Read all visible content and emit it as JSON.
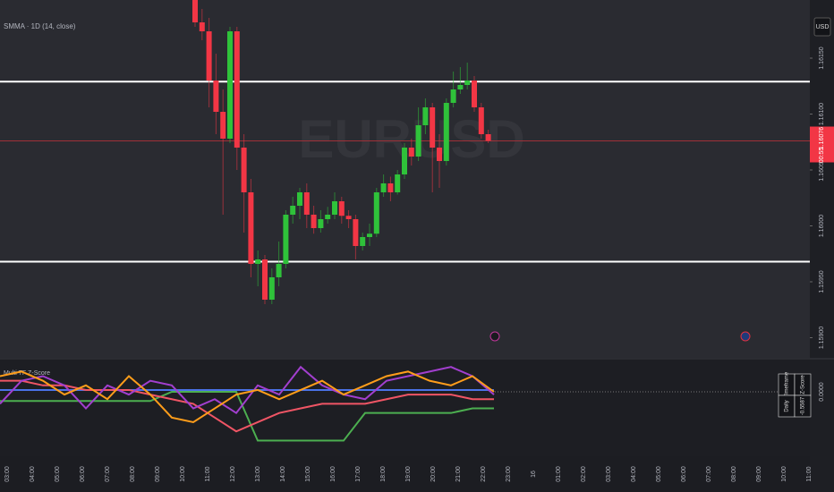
{
  "chart_data": [
    {
      "type": "candlestick",
      "legend": "SMMA · 1D (14, close)",
      "watermark": "EURUSD",
      "currency": "USD",
      "countdown": "00:55",
      "up_color": "#2fc23a",
      "down_color": "#f23645",
      "open": [
        1.16202,
        1.16182,
        1.16174,
        1.1613,
        1.16102,
        1.16078,
        1.16174,
        1.1607,
        1.1603,
        1.15966,
        1.1597,
        1.15934,
        1.15954,
        1.15966,
        1.1601,
        1.16018,
        1.1603,
        1.1601,
        1.15998,
        1.16006,
        1.1601,
        1.16022,
        1.16009,
        1.16006,
        1.15982,
        1.1599,
        1.15993,
        1.1603,
        1.16038,
        1.1603,
        1.16046,
        1.1607,
        1.16062,
        1.1609,
        1.16106,
        1.1607,
        1.16058,
        1.1611,
        1.16122,
        1.16126,
        1.1613,
        1.16106,
        1.16082
      ],
      "high": [
        1.16202,
        1.16194,
        1.16186,
        1.16154,
        1.16122,
        1.16178,
        1.16178,
        1.16082,
        1.16042,
        1.15978,
        1.15974,
        1.15962,
        1.15986,
        1.16014,
        1.16026,
        1.16034,
        1.16038,
        1.16018,
        1.16014,
        1.16017,
        1.1603,
        1.16026,
        1.16014,
        1.1601,
        1.15994,
        1.16002,
        1.16034,
        1.16046,
        1.16044,
        1.1605,
        1.16074,
        1.16078,
        1.16106,
        1.16114,
        1.1611,
        1.16082,
        1.16114,
        1.16138,
        1.16142,
        1.16146,
        1.16134,
        1.1611,
        1.16086
      ],
      "low": [
        1.16178,
        1.16166,
        1.16106,
        1.16082,
        1.1601,
        1.16074,
        1.1605,
        1.15994,
        1.15954,
        1.15946,
        1.1593,
        1.1593,
        1.15946,
        1.15962,
        1.16002,
        1.16006,
        1.15998,
        1.15993,
        1.15994,
        1.16002,
        1.16006,
        1.16002,
        1.15998,
        1.1597,
        1.15978,
        1.15982,
        1.1599,
        1.16026,
        1.16022,
        1.16028,
        1.16042,
        1.16054,
        1.16058,
        1.16082,
        1.1603,
        1.16034,
        1.16054,
        1.16106,
        1.16118,
        1.16122,
        1.16102,
        1.16078,
        1.16074
      ],
      "close": [
        1.16182,
        1.16174,
        1.1613,
        1.16102,
        1.16078,
        1.16174,
        1.1607,
        1.1603,
        1.15966,
        1.1597,
        1.15934,
        1.15954,
        1.15966,
        1.1601,
        1.16018,
        1.1603,
        1.1601,
        1.15998,
        1.16006,
        1.1601,
        1.16022,
        1.16009,
        1.16006,
        1.15982,
        1.1599,
        1.15993,
        1.1603,
        1.16038,
        1.1603,
        1.16046,
        1.1607,
        1.16062,
        1.1609,
        1.16106,
        1.1607,
        1.16058,
        1.1611,
        1.16122,
        1.16126,
        1.1613,
        1.16106,
        1.16082,
        1.16076
      ],
      "hlines": [
        1.16129,
        1.15968
      ],
      "hline_color": "#ffffff",
      "ylim": [
        1.15882,
        1.16202
      ],
      "yticks": [
        {
          "value": 1.1615,
          "label": "1.16150"
        },
        {
          "value": 1.161,
          "label": "1.16100"
        },
        {
          "value": 1.1605,
          "label": "1.16050"
        },
        {
          "value": 1.16,
          "label": "1.16000"
        },
        {
          "value": 1.1595,
          "label": "1.15950"
        },
        {
          "value": 1.159,
          "label": "1.15900"
        }
      ]
    },
    {
      "type": "line",
      "title": "Multi TF Z-Score",
      "ylim": [
        -3.4,
        1.7
      ],
      "yticks": [
        {
          "value": 0,
          "label": "0.0000"
        }
      ],
      "series": [
        {
          "color": "#4caf50",
          "values": [
            -0.5,
            -0.5,
            -0.5,
            -0.5,
            -0.5,
            -0.5,
            -0.5,
            -0.5,
            0,
            0,
            0,
            0,
            -2.65,
            -2.65,
            -2.65,
            -2.65,
            -2.65,
            -1.15,
            -1.15,
            -1.15,
            -1.15,
            -1.15,
            -0.9,
            -0.9
          ]
        },
        {
          "color": "#4a72e8",
          "values": [
            0.1,
            0.1,
            0.1,
            0.1,
            0.1,
            0.1,
            0.1,
            0.1,
            0.1,
            0.1,
            0.1,
            0.1,
            0.1,
            0.1,
            0.1,
            0.1,
            0.1,
            0.1,
            0.1,
            0.1,
            0.1,
            0.1,
            0.1,
            0.1
          ]
        },
        {
          "color": "#f05565",
          "values": [
            0.6,
            0.6,
            0.35,
            0.35,
            0.1,
            0.1,
            0.1,
            -0.15,
            -0.4,
            -0.65,
            -1.4,
            -2.15,
            -1.65,
            -1.15,
            -0.9,
            -0.65,
            -0.65,
            -0.65,
            -0.4,
            -0.15,
            -0.15,
            -0.15,
            -0.4,
            -0.4
          ]
        },
        {
          "color": "#a23fcf",
          "values": [
            -0.65,
            0.6,
            0.85,
            0.35,
            -0.9,
            0.35,
            -0.15,
            0.6,
            0.35,
            -0.9,
            -0.4,
            -1.15,
            0.35,
            -0.15,
            1.35,
            0.35,
            -0.15,
            -0.4,
            0.6,
            0.85,
            1.1,
            1.35,
            0.85,
            -0.15
          ]
        },
        {
          "color": "#ff9d1a",
          "values": [
            0.85,
            1.1,
            0.6,
            -0.15,
            0.35,
            -0.4,
            0.85,
            -0.15,
            -1.4,
            -1.65,
            -0.9,
            -0.15,
            0.1,
            -0.4,
            0.1,
            0.6,
            -0.15,
            0.35,
            0.85,
            1.1,
            0.6,
            0.35,
            0.85,
            0
          ]
        }
      ],
      "table": {
        "header": [
          "Timeframe",
          "Z-Score"
        ],
        "rows": [
          [
            "Daily",
            "-0.5587"
          ]
        ]
      }
    }
  ],
  "time_labels": [
    "03:00",
    "04:00",
    "05:00",
    "06:00",
    "07:00",
    "08:00",
    "09:00",
    "10:00",
    "11:00",
    "12:00",
    "13:00",
    "14:00",
    "15:00",
    "16:00",
    "17:00",
    "18:00",
    "19:00",
    "20:00",
    "21:00",
    "22:00",
    "23:00",
    "16",
    "01:00",
    "02:00",
    "03:00",
    "04:00",
    "05:00",
    "06:00",
    "07:00",
    "08:00",
    "09:00",
    "10:00",
    "11:00"
  ]
}
